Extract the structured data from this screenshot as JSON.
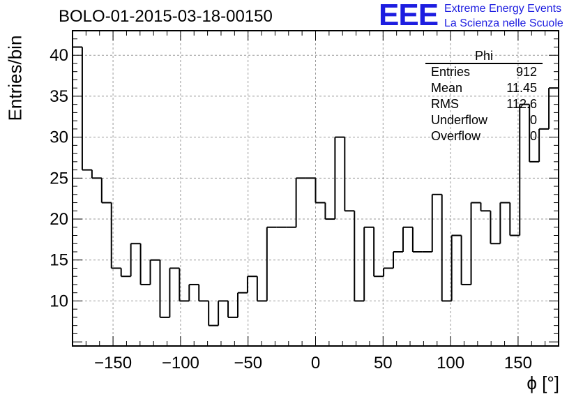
{
  "header": {
    "title": "BOLO-01-2015-03-18-00150",
    "brand": {
      "logo_text": "EEE",
      "line1": "Extreme Energy Events",
      "line2": "La Scienza nelle Scuole",
      "color": "#1d1de0"
    }
  },
  "stats": {
    "name": "Phi",
    "rows": [
      {
        "label": "Entries",
        "value": "912"
      },
      {
        "label": "Mean",
        "value": "11.45"
      },
      {
        "label": "RMS",
        "value": "112.6"
      },
      {
        "label": "Underflow",
        "value": "0"
      },
      {
        "label": "Overflow",
        "value": "0"
      }
    ]
  },
  "chart_data": {
    "type": "bar",
    "style": "step-histogram",
    "title": "BOLO-01-2015-03-18-00150",
    "xlabel": "ϕ [°]",
    "ylabel": "Entries/bin",
    "xlim": [
      -180,
      180
    ],
    "ylim": [
      4.5,
      43
    ],
    "bin_width": 7.2,
    "x_ticks": [
      -150,
      -100,
      -50,
      0,
      50,
      100,
      150
    ],
    "x_tick_labels": [
      "−150",
      "−100",
      "−50",
      "0",
      "50",
      "100",
      "150"
    ],
    "y_ticks": [
      10,
      15,
      20,
      25,
      30,
      35,
      40
    ],
    "y_tick_labels": [
      "10",
      "15",
      "20",
      "25",
      "30",
      "35",
      "40"
    ],
    "grid": true,
    "values": [
      41,
      26,
      25,
      22,
      14,
      13,
      17,
      12,
      15,
      8,
      14,
      10,
      12,
      10,
      7,
      10,
      8,
      11,
      13,
      10,
      19,
      19,
      19,
      25,
      25,
      22,
      20,
      30,
      21,
      10,
      19,
      13,
      14,
      16,
      19,
      16,
      16,
      23,
      10,
      18,
      12,
      22,
      21,
      17,
      22,
      18,
      34,
      27,
      31,
      36
    ]
  }
}
